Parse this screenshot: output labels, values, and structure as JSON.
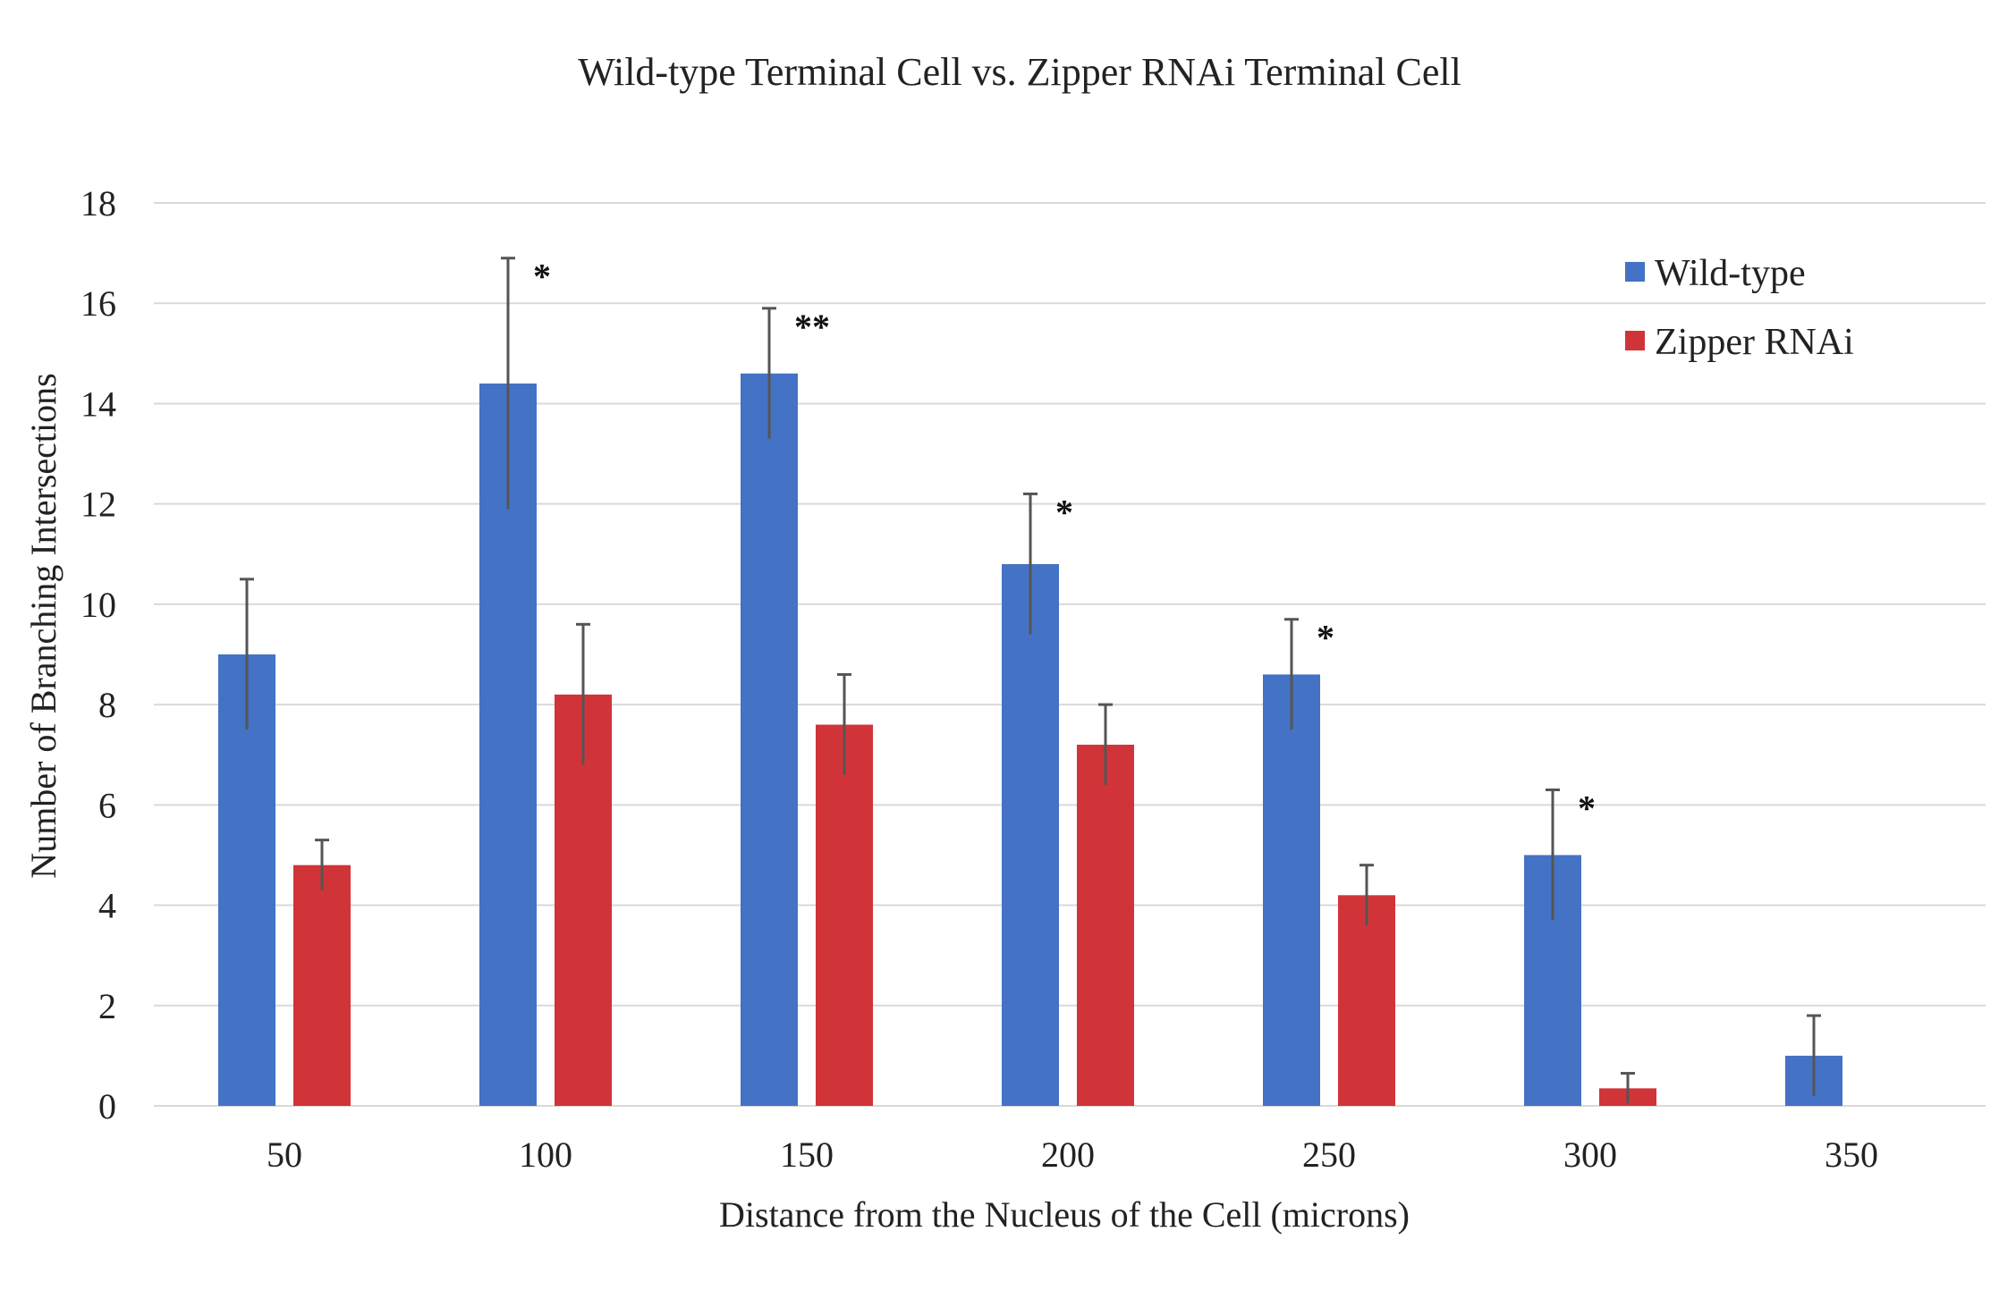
{
  "chart_data": {
    "type": "bar",
    "title": "Wild-type Terminal Cell vs. Zipper RNAi Terminal Cell",
    "xlabel": "Distance from the Nucleus of the Cell (microns)",
    "ylabel": "Number of Branching Intersections",
    "categories": [
      "50",
      "100",
      "150",
      "200",
      "250",
      "300",
      "350"
    ],
    "yticks": [
      "0",
      "2",
      "4",
      "6",
      "8",
      "10",
      "12",
      "14",
      "16",
      "18"
    ],
    "ylim": [
      0,
      18
    ],
    "grid": true,
    "legend_position": "top-right",
    "series": [
      {
        "name": "Wild-type",
        "color": "#4472C4",
        "values": [
          9.0,
          14.4,
          14.6,
          10.8,
          8.6,
          5.0,
          1.0
        ],
        "errors": [
          1.5,
          2.5,
          1.3,
          1.4,
          1.1,
          1.3,
          0.8
        ]
      },
      {
        "name": "Zipper RNAi",
        "color": "#D13438",
        "values": [
          4.8,
          8.2,
          7.6,
          7.2,
          4.2,
          0.35,
          null
        ],
        "errors": [
          0.5,
          1.4,
          1.0,
          0.8,
          0.6,
          0.3,
          null
        ]
      }
    ],
    "significance": [
      "",
      "*",
      "**",
      "*",
      "*",
      "*",
      ""
    ]
  }
}
